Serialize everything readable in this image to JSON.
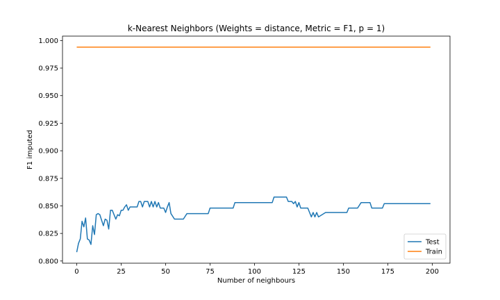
{
  "chart_data": {
    "type": "line",
    "title": "k-Nearest Neighbors (Weights = distance, Metric = F1, p = 1)",
    "xlabel": "Number of neighbours",
    "ylabel": "F1 imputed",
    "xlim": [
      -8,
      210
    ],
    "ylim": [
      0.798,
      1.004
    ],
    "xticks": [
      0,
      25,
      50,
      75,
      100,
      125,
      150,
      175,
      200
    ],
    "yticks": [
      0.8,
      0.825,
      0.85,
      0.875,
      0.9,
      0.925,
      0.95,
      0.975,
      1.0
    ],
    "xtick_labels": [
      "0",
      "25",
      "50",
      "75",
      "100",
      "125",
      "150",
      "175",
      "200"
    ],
    "ytick_labels": [
      "0.800",
      "0.825",
      "0.850",
      "0.875",
      "0.900",
      "0.925",
      "0.950",
      "0.975",
      "1.000"
    ],
    "legend_position": "lower-right",
    "grid": false,
    "series": [
      {
        "name": "Test",
        "color": "#1f77b4",
        "x": [
          0,
          1,
          2,
          3,
          4,
          5,
          6,
          7,
          8,
          9,
          10,
          11,
          12,
          13,
          14,
          15,
          16,
          17,
          18,
          19,
          20,
          21,
          22,
          23,
          24,
          25,
          26,
          27,
          28,
          29,
          30,
          33,
          34,
          35,
          36,
          37,
          38,
          39,
          40,
          41,
          42,
          43,
          44,
          45,
          46,
          47,
          48,
          49,
          50,
          51,
          52,
          53,
          55,
          59,
          60,
          62,
          70,
          74,
          75,
          80,
          88,
          89,
          95,
          110,
          111,
          112,
          118,
          119,
          120,
          121,
          122,
          123,
          124,
          125,
          126,
          127,
          128,
          129,
          130,
          131,
          132,
          133,
          134,
          135,
          136,
          140,
          145,
          152,
          153,
          157,
          158,
          160,
          164,
          165,
          166,
          172,
          173,
          180,
          190,
          199
        ],
        "values": [
          0.808,
          0.816,
          0.82,
          0.836,
          0.831,
          0.839,
          0.82,
          0.819,
          0.815,
          0.832,
          0.824,
          0.842,
          0.843,
          0.842,
          0.837,
          0.832,
          0.838,
          0.837,
          0.829,
          0.846,
          0.846,
          0.842,
          0.838,
          0.842,
          0.841,
          0.846,
          0.846,
          0.849,
          0.851,
          0.846,
          0.849,
          0.849,
          0.849,
          0.854,
          0.854,
          0.849,
          0.854,
          0.854,
          0.854,
          0.849,
          0.854,
          0.849,
          0.854,
          0.849,
          0.853,
          0.848,
          0.848,
          0.848,
          0.844,
          0.849,
          0.853,
          0.843,
          0.838,
          0.838,
          0.838,
          0.843,
          0.843,
          0.843,
          0.848,
          0.848,
          0.848,
          0.853,
          0.853,
          0.853,
          0.858,
          0.858,
          0.858,
          0.854,
          0.854,
          0.854,
          0.852,
          0.854,
          0.849,
          0.853,
          0.848,
          0.848,
          0.848,
          0.848,
          0.848,
          0.844,
          0.84,
          0.844,
          0.84,
          0.844,
          0.84,
          0.844,
          0.844,
          0.844,
          0.848,
          0.848,
          0.848,
          0.853,
          0.853,
          0.853,
          0.848,
          0.848,
          0.852,
          0.852,
          0.852,
          0.852
        ]
      },
      {
        "name": "Train",
        "color": "#ff7f0e",
        "x": [
          0,
          199
        ],
        "values": [
          0.994,
          0.994
        ]
      }
    ]
  }
}
